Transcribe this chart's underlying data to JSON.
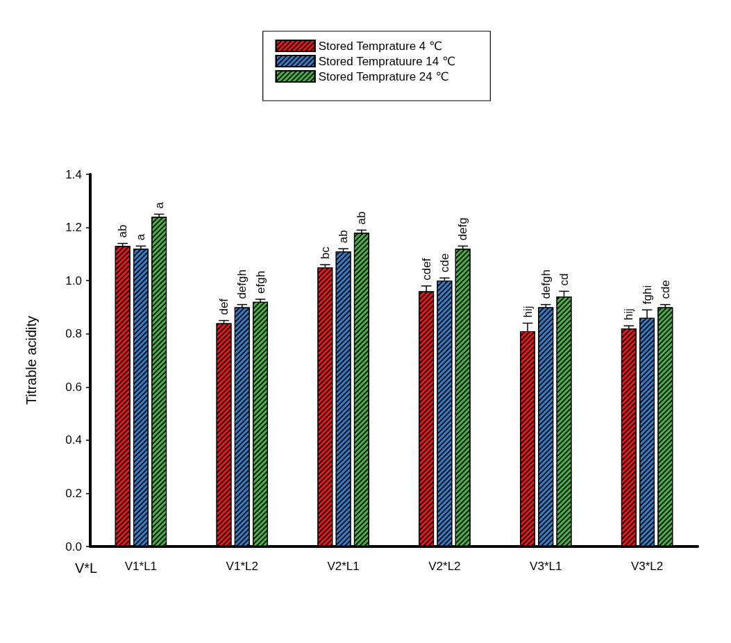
{
  "chart_data": {
    "type": "bar",
    "ylabel": "Titrable acidity",
    "xlabel": "V*L",
    "categories": [
      "V1*L1",
      "V1*L2",
      "V2*L1",
      "V2*L2",
      "V3*L1",
      "V3*L2"
    ],
    "series": [
      {
        "name": "Stored Temprature 4 ℃",
        "color": "#e41a1c",
        "values": [
          1.13,
          0.84,
          1.05,
          0.96,
          0.81,
          0.82
        ],
        "errors": [
          0.01,
          0.01,
          0.01,
          0.02,
          0.03,
          0.01
        ],
        "value_labels": [
          "ab",
          "def",
          "bc",
          "cdef",
          "hij",
          "hij"
        ]
      },
      {
        "name": "Stored Tempratuure 14 ℃",
        "color": "#3a7cc4",
        "values": [
          1.12,
          0.9,
          1.11,
          1.0,
          0.9,
          0.86
        ],
        "errors": [
          0.01,
          0.01,
          0.01,
          0.01,
          0.01,
          0.03
        ],
        "value_labels": [
          "a",
          "defgh",
          "ab",
          "cde",
          "defgh",
          "fghi"
        ]
      },
      {
        "name": "Stored Temprature 24 ℃",
        "color": "#4daf4a",
        "values": [
          1.24,
          0.92,
          1.18,
          1.12,
          0.94,
          0.9
        ],
        "errors": [
          0.01,
          0.01,
          0.01,
          0.01,
          0.02,
          0.01
        ],
        "value_labels": [
          "a",
          "efgh",
          "ab",
          "defg",
          "cd",
          "cde"
        ]
      }
    ],
    "ylim": [
      0,
      1.4
    ],
    "yticks": [
      {
        "value": 0,
        "label": "0.0"
      },
      {
        "value": 0.2,
        "label": "0.2"
      },
      {
        "value": 0.4,
        "label": "0.4"
      },
      {
        "value": 0.6,
        "label": "0.6"
      },
      {
        "value": 0.8,
        "label": "0.8"
      },
      {
        "value": 1.0,
        "label": "1.0"
      },
      {
        "value": 1.2,
        "label": "1.2"
      },
      {
        "value": 1.4,
        "label": "1.4"
      }
    ],
    "grid": false,
    "legend": "top"
  }
}
